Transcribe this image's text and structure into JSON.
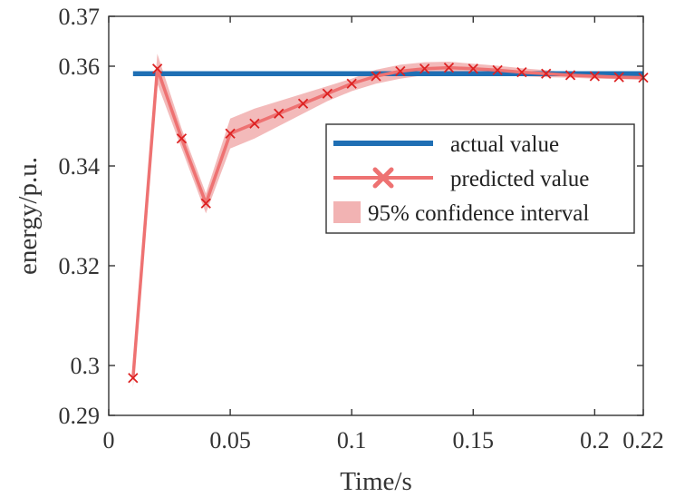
{
  "chart_data": {
    "type": "line",
    "title": "",
    "xlabel": "Time/s",
    "ylabel": "energy/p.u.",
    "xlim": [
      0,
      0.22
    ],
    "ylim": [
      0.29,
      0.37
    ],
    "xticks": [
      0,
      0.05,
      0.1,
      0.15,
      0.2,
      0.22
    ],
    "xtick_labels": [
      "0",
      "0.05",
      "0.1",
      "0.15",
      "0.2",
      "0.22"
    ],
    "yticks": [
      0.29,
      0.3,
      0.32,
      0.34,
      0.36,
      0.37
    ],
    "ytick_labels": [
      "0.29",
      "0.3",
      "0.32",
      "0.34",
      "0.36",
      "0.37"
    ],
    "grid": false,
    "legend_position": "center-right",
    "colors": {
      "actual": "#1f6fb4",
      "predicted": "#ee7272",
      "marker": "#dd2222",
      "band": "#f2b3b3",
      "axis": "#333333"
    },
    "series": [
      {
        "name": "actual value",
        "style": "line",
        "x": [
          0.01,
          0.22
        ],
        "y": [
          0.3585,
          0.3585
        ]
      },
      {
        "name": "predicted value",
        "style": "line-markers",
        "x": [
          0.01,
          0.02,
          0.03,
          0.04,
          0.05,
          0.06,
          0.07,
          0.08,
          0.09,
          0.1,
          0.11,
          0.12,
          0.13,
          0.14,
          0.15,
          0.16,
          0.17,
          0.18,
          0.19,
          0.2,
          0.21,
          0.22
        ],
        "y": [
          0.2975,
          0.3595,
          0.3455,
          0.3325,
          0.3465,
          0.3485,
          0.3505,
          0.3525,
          0.3545,
          0.3565,
          0.358,
          0.359,
          0.3595,
          0.3597,
          0.3595,
          0.3592,
          0.3588,
          0.3585,
          0.3582,
          0.358,
          0.3578,
          0.3577
        ]
      },
      {
        "name": "95% confidence interval",
        "style": "band",
        "x": [
          0.01,
          0.02,
          0.03,
          0.04,
          0.05,
          0.06,
          0.07,
          0.08,
          0.09,
          0.1,
          0.11,
          0.12,
          0.13,
          0.14,
          0.15,
          0.16,
          0.17,
          0.18,
          0.19,
          0.2,
          0.21,
          0.22
        ],
        "lower": [
          0.2955,
          0.3565,
          0.3435,
          0.3305,
          0.3435,
          0.3455,
          0.348,
          0.3505,
          0.353,
          0.355,
          0.3565,
          0.3575,
          0.3582,
          0.3585,
          0.3585,
          0.3583,
          0.358,
          0.3578,
          0.3577,
          0.3575,
          0.3574,
          0.3573
        ],
        "upper": [
          0.2995,
          0.3625,
          0.3475,
          0.3345,
          0.3495,
          0.3515,
          0.353,
          0.3545,
          0.356,
          0.3575,
          0.3593,
          0.3603,
          0.3608,
          0.3609,
          0.3605,
          0.3601,
          0.3596,
          0.3592,
          0.3587,
          0.3585,
          0.3582,
          0.3581
        ]
      }
    ]
  }
}
